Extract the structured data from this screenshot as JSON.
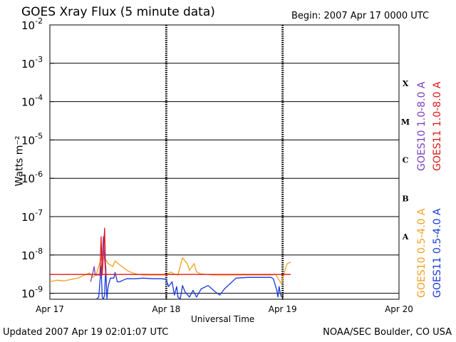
{
  "header": {
    "title": "GOES Xray Flux (5 minute data)",
    "begin": "Begin:  2007 Apr 17 0000 UTC"
  },
  "footer": {
    "updated": "Updated 2007 Apr 19 02:01:07 UTC",
    "credit": "NOAA/SEC Boulder, CO USA"
  },
  "axes": {
    "xlabel": "Universal Time",
    "ylabel": "Watts m⁻²"
  },
  "colors": {
    "goes10_long": "#7b3fc0",
    "goes11_long": "#e0181a",
    "goes10_short": "#f0a020",
    "goes11_short": "#1838d8",
    "threshold": "#e0181a",
    "grid": "#000000"
  },
  "chart_data": {
    "type": "line",
    "title": "GOES Xray Flux (5 minute data)",
    "xlabel": "Universal Time",
    "ylabel": "Watts m-2",
    "x_ticks": [
      "Apr 17",
      "Apr 18",
      "Apr 19",
      "Apr 20"
    ],
    "xlim_days": [
      0,
      3
    ],
    "ylim": [
      7e-10,
      0.01
    ],
    "yscale": "log",
    "y_ticks": [
      {
        "value": 0.01,
        "label": "10^-2"
      },
      {
        "value": 0.001,
        "label": "10^-3"
      },
      {
        "value": 0.0001,
        "label": "10^-4"
      },
      {
        "value": 1e-05,
        "label": "10^-5"
      },
      {
        "value": 1e-06,
        "label": "10^-6"
      },
      {
        "value": 1e-07,
        "label": "10^-7"
      },
      {
        "value": 1e-08,
        "label": "10^-8"
      },
      {
        "value": 1e-09,
        "label": "10^-9"
      }
    ],
    "flare_classes": [
      {
        "label": "X",
        "value": 0.0003
      },
      {
        "label": "M",
        "value": 3e-05
      },
      {
        "label": "C",
        "value": 3e-06
      },
      {
        "label": "B",
        "value": 3e-07
      },
      {
        "label": "A",
        "value": 3e-08
      }
    ],
    "legend": [
      {
        "name": "GOES10 1.0-8.0 A",
        "color": "#7b3fc0"
      },
      {
        "name": "GOES11 1.0-8.0 A",
        "color": "#e0181a"
      },
      {
        "name": "GOES10 0.5-4.0 A",
        "color": "#f0a020"
      },
      {
        "name": "GOES11 0.5-4.0 A",
        "color": "#1838d8"
      }
    ],
    "grid": true,
    "series": [
      {
        "name": "GOES10 0.5-4.0 A",
        "color": "#f0a020",
        "x": [
          0,
          0.06,
          0.12,
          0.18,
          0.24,
          0.3,
          0.34,
          0.36,
          0.37,
          0.4,
          0.44,
          0.45,
          0.47,
          0.5,
          0.54,
          0.56,
          0.6,
          0.62,
          0.66,
          0.7,
          0.74,
          0.8,
          0.9,
          1.0,
          1.02,
          1.04,
          1.06,
          1.08,
          1.1,
          1.14,
          1.16,
          1.18,
          1.2,
          1.24,
          1.26,
          1.3,
          1.4,
          1.5,
          1.6,
          1.7,
          1.8,
          1.9,
          1.94,
          1.97,
          1.99,
          2.0,
          2.02,
          2.04,
          2.07
        ],
        "values": [
          2e-09,
          2.2e-09,
          2.1e-09,
          2.3e-09,
          2.5e-09,
          3e-09,
          3.4e-09,
          2.8e-09,
          2.6e-09,
          3.2e-09,
          8e-09,
          7.5e-09,
          8.5e-09,
          6e-09,
          5e-09,
          7e-09,
          5.5e-09,
          5e-09,
          4e-09,
          3.5e-09,
          3.2e-09,
          3e-09,
          3e-09,
          3e-09,
          3.3e-09,
          3.6e-09,
          3.3e-09,
          3.1e-09,
          3e-09,
          8.5e-09,
          7e-09,
          6e-09,
          4e-09,
          6e-09,
          3.6e-09,
          3.2e-09,
          3e-09,
          3e-09,
          3e-09,
          3e-09,
          3e-09,
          3e-09,
          3.1e-09,
          2.2e-09,
          1.8e-09,
          2.3e-09,
          4e-09,
          6e-09,
          6.5e-09
        ]
      },
      {
        "name": "GOES11 0.5-4.0 A",
        "color": "#1838d8",
        "x": [
          0.4,
          0.42,
          0.44,
          0.45,
          0.46,
          0.47,
          0.48,
          0.49,
          0.5,
          0.52,
          0.55,
          0.56,
          0.58,
          0.6,
          0.63,
          0.66,
          0.7,
          0.74,
          0.8,
          0.88,
          0.96,
          1.0,
          1.02,
          1.05,
          1.07,
          1.09,
          1.1,
          1.12,
          1.14,
          1.16,
          1.2,
          1.23,
          1.26,
          1.3,
          1.36,
          1.42,
          1.46,
          1.5,
          1.55,
          1.6,
          1.7,
          1.8,
          1.9,
          1.92,
          1.95,
          1.96,
          1.97,
          1.98,
          1.99
        ],
        "values": [
          7e-10,
          8e-10,
          5e-09,
          8e-10,
          7e-10,
          9e-10,
          5e-09,
          7e-10,
          1.5e-09,
          2.5e-09,
          2.5e-09,
          3.5e-09,
          2e-09,
          2e-09,
          2.2e-09,
          2.4e-09,
          2.4e-09,
          2.4e-09,
          2.5e-09,
          2.4e-09,
          2.4e-09,
          2.3e-09,
          1.5e-09,
          2e-09,
          9e-10,
          1.5e-09,
          8e-10,
          7e-10,
          1.6e-09,
          1.1e-09,
          8e-10,
          1.2e-09,
          8e-10,
          1.3e-09,
          1.6e-09,
          1.1e-09,
          9e-10,
          1.3e-09,
          1.8e-09,
          2.5e-09,
          2.6e-09,
          2.6e-09,
          2.6e-09,
          2.4e-09,
          1.2e-09,
          8e-10,
          1.5e-09,
          1e-09,
          8e-10
        ]
      },
      {
        "name": "GOES10 1.0-8.0 A",
        "color": "#7b3fc0",
        "x": [
          0.35,
          0.37,
          0.38,
          0.39,
          0.44,
          0.46,
          0.47,
          0.48
        ],
        "values": [
          2e-09,
          3.5e-09,
          5e-09,
          3e-09,
          3e-09,
          3e-08,
          8e-09,
          3e-09
        ]
      },
      {
        "name": "GOES11 1.0-8.0 A",
        "color": "#e0181a",
        "x": [
          0.43,
          0.44,
          0.45,
          0.46,
          0.47,
          0.48,
          0.49,
          0.5
        ],
        "values": [
          3e-09,
          3e-08,
          3e-09,
          1e-08,
          5e-08,
          3e-09,
          3.1e-09,
          3.1e-09
        ]
      },
      {
        "name": "GOES11 1.0-8.0 A (flat)",
        "color": "#e0181a",
        "x": [
          0,
          2.07
        ],
        "values": [
          3.1e-09,
          3.1e-09
        ]
      }
    ]
  }
}
